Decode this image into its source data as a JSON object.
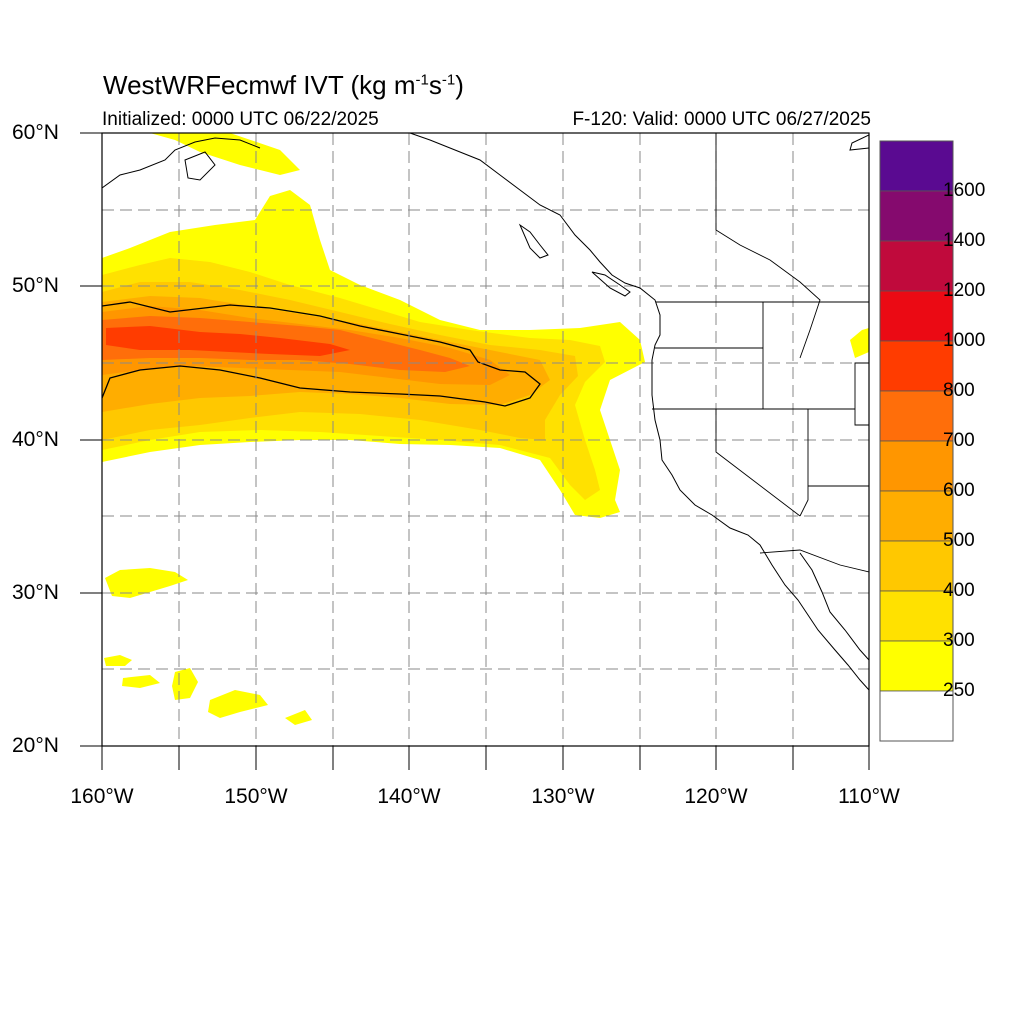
{
  "header": {
    "title_main": "WestWRFecmwf IVT (kg m",
    "title_exp1": "-1",
    "title_mid": "s",
    "title_exp2": "-1",
    "title_end": ")",
    "initialized": "Initialized: 0000 UTC 06/22/2025",
    "valid": "F-120: Valid: 0000 UTC 06/27/2025"
  },
  "axes": {
    "lat_labels": [
      "60°N",
      "50°N",
      "40°N",
      "30°N",
      "20°N"
    ],
    "lon_labels": [
      "160°W",
      "150°W",
      "140°W",
      "130°W",
      "120°W",
      "110°W"
    ]
  },
  "colorbar": {
    "labels": [
      "1600",
      "1400",
      "1200",
      "1000",
      "800",
      "700",
      "600",
      "500",
      "400",
      "300",
      "250"
    ],
    "colors": [
      "#5a0a91",
      "#850a6e",
      "#c00a3c",
      "#eb0a14",
      "#ff3c00",
      "#ff6e0a",
      "#ff9600",
      "#ffad00",
      "#ffc800",
      "#ffe100",
      "#ffff00",
      "#ffffff"
    ]
  },
  "fills": {
    "y250": "#ffff00",
    "y300": "#ffe100",
    "y400": "#ffc800",
    "o500": "#ffad00",
    "o600": "#ff9600",
    "o700": "#ff6e0a",
    "r800": "#ff3c00"
  }
}
